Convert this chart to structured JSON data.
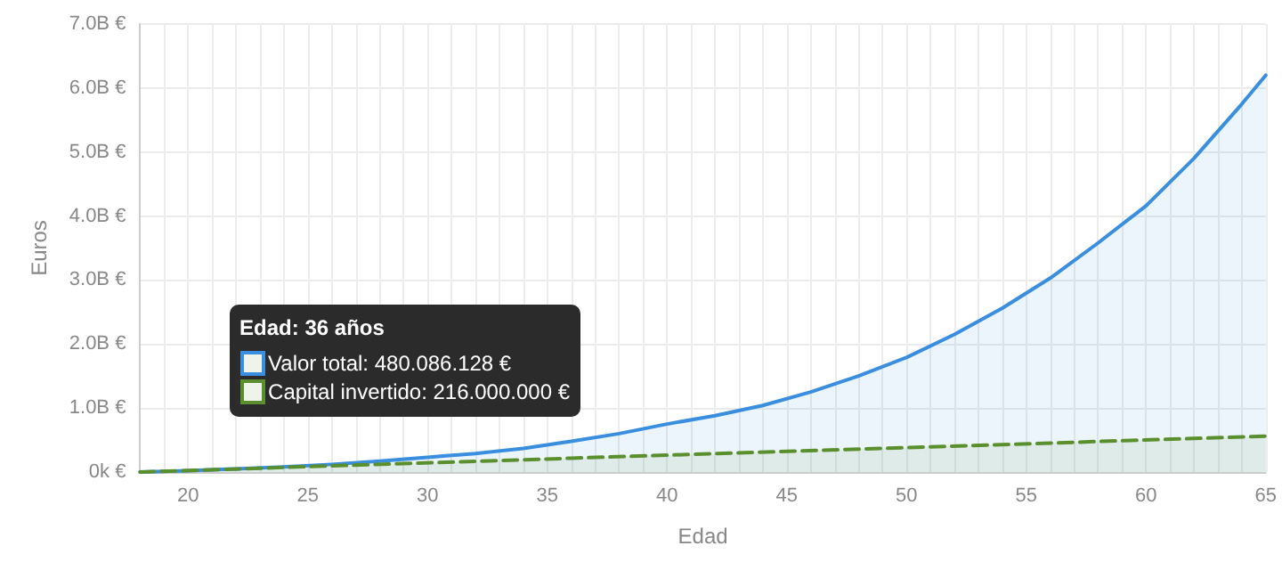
{
  "chart_data": {
    "type": "area",
    "xlabel": "Edad",
    "ylabel": "Euros",
    "xlim": [
      18,
      65
    ],
    "ylim": [
      0,
      7000000000
    ],
    "xticks": [
      {
        "value": 18,
        "label": null
      },
      {
        "value": 19,
        "label": null
      },
      20,
      {
        "value": 21,
        "label": null
      },
      {
        "value": 22,
        "label": null
      },
      {
        "value": 23,
        "label": null
      },
      {
        "value": 24,
        "label": null
      },
      25,
      {
        "value": 26,
        "label": null
      },
      {
        "value": 27,
        "label": null
      },
      {
        "value": 28,
        "label": null
      },
      {
        "value": 29,
        "label": null
      },
      30,
      {
        "value": 31,
        "label": null
      },
      {
        "value": 32,
        "label": null
      },
      {
        "value": 33,
        "label": null
      },
      {
        "value": 34,
        "label": null
      },
      35,
      {
        "value": 36,
        "label": null
      },
      {
        "value": 37,
        "label": null
      },
      {
        "value": 38,
        "label": null
      },
      {
        "value": 39,
        "label": null
      },
      40,
      {
        "value": 41,
        "label": null
      },
      {
        "value": 42,
        "label": null
      },
      {
        "value": 43,
        "label": null
      },
      {
        "value": 44,
        "label": null
      },
      45,
      {
        "value": 46,
        "label": null
      },
      {
        "value": 47,
        "label": null
      },
      {
        "value": 48,
        "label": null
      },
      {
        "value": 49,
        "label": null
      },
      50,
      {
        "value": 51,
        "label": null
      },
      {
        "value": 52,
        "label": null
      },
      {
        "value": 53,
        "label": null
      },
      {
        "value": 54,
        "label": null
      },
      55,
      {
        "value": 56,
        "label": null
      },
      {
        "value": 57,
        "label": null
      },
      {
        "value": 58,
        "label": null
      },
      {
        "value": 59,
        "label": null
      },
      60,
      {
        "value": 61,
        "label": null
      },
      {
        "value": 62,
        "label": null
      },
      {
        "value": 63,
        "label": null
      },
      {
        "value": 64,
        "label": null
      },
      65
    ],
    "yticks": [
      {
        "value": 0,
        "label": "0k €"
      },
      {
        "value": 1000000000,
        "label": "1.0B €"
      },
      {
        "value": 2000000000,
        "label": "2.0B €"
      },
      {
        "value": 3000000000,
        "label": "3.0B €"
      },
      {
        "value": 4000000000,
        "label": "4.0B €"
      },
      {
        "value": 5000000000,
        "label": "5.0B €"
      },
      {
        "value": 6000000000,
        "label": "6.0B €"
      },
      {
        "value": 7000000000,
        "label": "7.0B €"
      }
    ],
    "grid": true,
    "line_style": "solid",
    "series": [
      {
        "color": "#3a8ee0",
        "x": [
          18,
          20,
          22,
          24,
          26,
          28,
          30,
          32,
          34,
          36,
          38,
          40,
          42,
          44,
          46,
          48,
          50,
          52,
          54,
          56,
          58,
          60,
          62,
          64,
          65
        ],
        "values": [
          0,
          20000000,
          50000000,
          80000000,
          120000000,
          170000000,
          230000000,
          290000000,
          370000000,
          480086128,
          600000000,
          750000000,
          880000000,
          1040000000,
          1250000000,
          1500000000,
          1790000000,
          2150000000,
          2560000000,
          3030000000,
          3580000000,
          4160000000,
          4900000000,
          5750000000,
          6200000000
        ]
      },
      {
        "color": "#5a8f2e",
        "line_style": "dashed",
        "x": [
          18,
          36,
          65
        ],
        "values": [
          0,
          216000000,
          560000000
        ]
      }
    ],
    "annotations": [
      "Edad: 36 años",
      "Valor total: 480.086.128 €",
      "Capital invertido: 216.000.000 €"
    ]
  }
}
